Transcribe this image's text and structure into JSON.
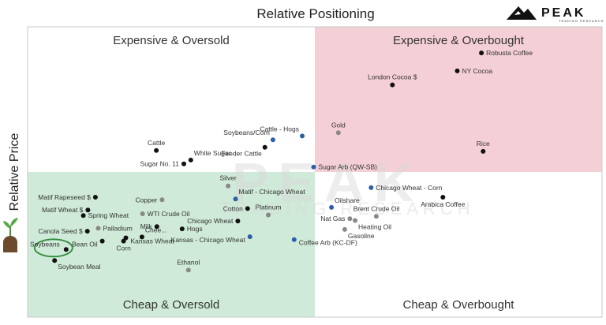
{
  "chart_data": {
    "type": "scatter",
    "title": "Relative Positioning",
    "ylabel": "Relative Price",
    "xlabel": "",
    "quadrants": {
      "top_left": {
        "label": "Expensive & Oversold",
        "color": "#ffffff"
      },
      "top_right": {
        "label": "Expensive & Overbought",
        "color": "#f4cfd6"
      },
      "bottom_left": {
        "label": "Cheap & Oversold",
        "color": "#cfead8"
      },
      "bottom_right": {
        "label": "Cheap & Overbought",
        "color": "#ffffff"
      }
    },
    "point_colors": {
      "black": "#111111",
      "blue": "#2f5ea8",
      "gray": "#888888"
    },
    "points": [
      {
        "label": "Robusta Coffee",
        "x": 0.79,
        "y": 0.91,
        "color": "black"
      },
      {
        "label": "NY Cocoa",
        "x": 0.748,
        "y": 0.848,
        "color": "black"
      },
      {
        "label": "London Cocoa $",
        "x": 0.635,
        "y": 0.8,
        "color": "black"
      },
      {
        "label": "Gold",
        "x": 0.541,
        "y": 0.635,
        "color": "gray"
      },
      {
        "label": "Cattle - Hogs",
        "x": 0.478,
        "y": 0.624,
        "color": "blue"
      },
      {
        "label": "Soybeans/Corn",
        "x": 0.427,
        "y": 0.611,
        "color": "blue"
      },
      {
        "label": "Cattle",
        "x": 0.224,
        "y": 0.574,
        "color": "black"
      },
      {
        "label": "White Sugar",
        "x": 0.284,
        "y": 0.541,
        "color": "black"
      },
      {
        "label": "Sugar No. 11",
        "x": 0.272,
        "y": 0.528,
        "color": "black"
      },
      {
        "label": "Feeder Cattle",
        "x": 0.413,
        "y": 0.585,
        "color": "black"
      },
      {
        "label": "Sugar Arb (QW-SB)",
        "x": 0.498,
        "y": 0.517,
        "color": "blue"
      },
      {
        "label": "Rice",
        "x": 0.793,
        "y": 0.571,
        "color": "black"
      },
      {
        "label": "Silver",
        "x": 0.349,
        "y": 0.452,
        "color": "gray"
      },
      {
        "label": "Matif - Chicago Wheat",
        "x": 0.362,
        "y": 0.407,
        "color": "blue"
      },
      {
        "label": "Chicago Wheat - Corn",
        "x": 0.598,
        "y": 0.446,
        "color": "blue"
      },
      {
        "label": "Copper",
        "x": 0.234,
        "y": 0.404,
        "color": "gray"
      },
      {
        "label": "Arabica Coffee",
        "x": 0.723,
        "y": 0.413,
        "color": "black"
      },
      {
        "label": "Oilshare",
        "x": 0.529,
        "y": 0.378,
        "color": "blue"
      },
      {
        "label": "Cotton",
        "x": 0.383,
        "y": 0.374,
        "color": "black"
      },
      {
        "label": "Platinum",
        "x": 0.419,
        "y": 0.352,
        "color": "gray"
      },
      {
        "label": "WTI Crude Oil",
        "x": 0.2,
        "y": 0.356,
        "color": "gray"
      },
      {
        "label": "Chicago Wheat",
        "x": 0.366,
        "y": 0.331,
        "color": "black"
      },
      {
        "label": "Brent Crude Oil",
        "x": 0.607,
        "y": 0.347,
        "color": "gray"
      },
      {
        "label": "Nat Gas",
        "x": 0.561,
        "y": 0.339,
        "color": "gray"
      },
      {
        "label": "Heating Oil",
        "x": 0.57,
        "y": 0.333,
        "color": "gray"
      },
      {
        "label": "Matif Rapeseed $",
        "x": 0.118,
        "y": 0.413,
        "color": "black"
      },
      {
        "label": "Matif Wheat $",
        "x": 0.105,
        "y": 0.369,
        "color": "black"
      },
      {
        "label": "Spring Wheat",
        "x": 0.097,
        "y": 0.35,
        "color": "black"
      },
      {
        "label": "Milk",
        "x": 0.225,
        "y": 0.312,
        "color": "black"
      },
      {
        "label": "Hogs",
        "x": 0.269,
        "y": 0.304,
        "color": "black"
      },
      {
        "label": "Palladium",
        "x": 0.123,
        "y": 0.306,
        "color": "gray"
      },
      {
        "label": "Gasoline",
        "x": 0.552,
        "y": 0.302,
        "color": "gray"
      },
      {
        "label": "Canola Seed $",
        "x": 0.104,
        "y": 0.296,
        "color": "black"
      },
      {
        "label": "Kansas - Chicago Wheat",
        "x": 0.387,
        "y": 0.277,
        "color": "blue"
      },
      {
        "label": "Coffee Arb (KC-DF)",
        "x": 0.464,
        "y": 0.267,
        "color": "blue"
      },
      {
        "label": "Chee...",
        "x": 0.199,
        "y": 0.276,
        "color": "black"
      },
      {
        "label": "Kansas Wheat",
        "x": 0.171,
        "y": 0.273,
        "color": "black"
      },
      {
        "label": "Corn",
        "x": 0.167,
        "y": 0.262,
        "color": "black"
      },
      {
        "label": "Bean Oil",
        "x": 0.13,
        "y": 0.262,
        "color": "black"
      },
      {
        "label": "Soybeans",
        "x": 0.067,
        "y": 0.233,
        "color": "black",
        "highlight": true
      },
      {
        "label": "Soybean Meal",
        "x": 0.047,
        "y": 0.195,
        "color": "black"
      },
      {
        "label": "Ethanol",
        "x": 0.28,
        "y": 0.162,
        "color": "gray"
      }
    ]
  },
  "logo": {
    "name": "PEAK",
    "tagline": "TRADING RESEARCH"
  },
  "watermark": {
    "name": "PEAK",
    "tagline": "TRADING RESEARCH"
  },
  "icons": {
    "side_icon": "seedling-icon",
    "logo_icon": "mountain-icon"
  }
}
